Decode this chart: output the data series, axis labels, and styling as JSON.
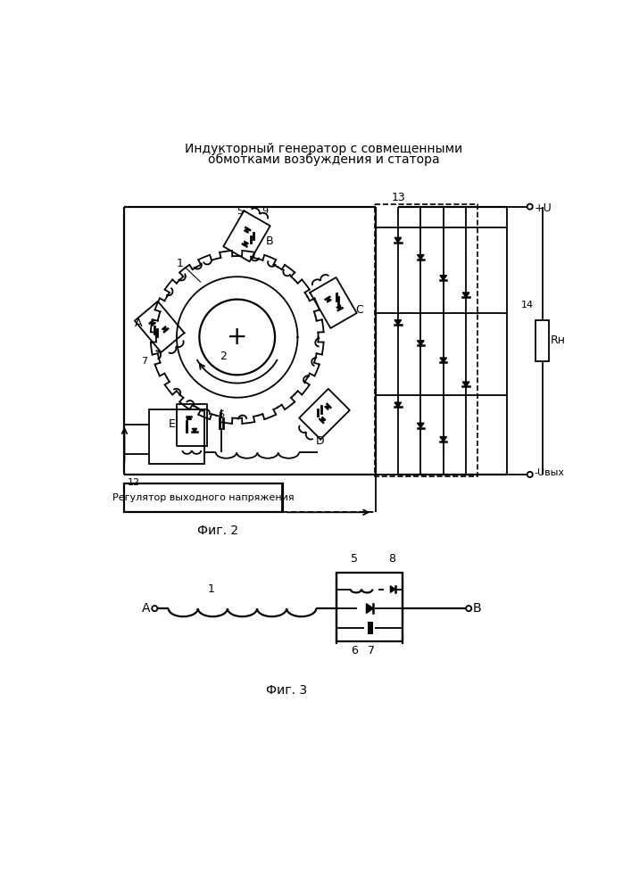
{
  "title_line1": "Индукторный генератор с совмещенными",
  "title_line2": "обмотками возбуждения и статора",
  "fig2_label": "Фиг. 2",
  "fig3_label": "Фиг. 3",
  "bg_color": "#ffffff",
  "line_color": "#000000"
}
